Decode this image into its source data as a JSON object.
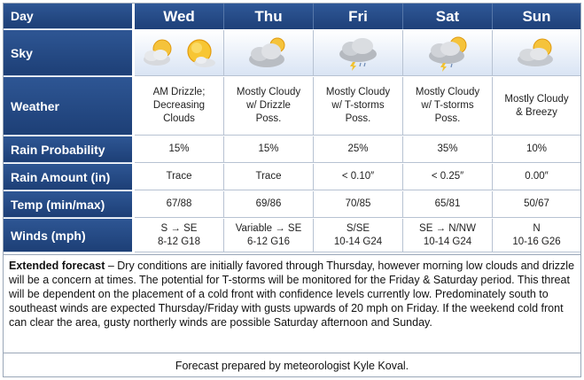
{
  "header": {
    "corner": "Day",
    "days": [
      "Wed",
      "Thu",
      "Fri",
      "Sat",
      "Sun"
    ]
  },
  "rows": {
    "sky": "Sky",
    "weather": "Weather",
    "rain_prob": "Rain Probability",
    "rain_amt": "Rain Amount (in)",
    "temp": "Temp (min/max)",
    "winds": "Winds (mph)"
  },
  "sky_icons": [
    [
      "partly-cloudy-icon",
      "mostly-sunny-icon"
    ],
    [
      "mostly-cloudy-icon"
    ],
    [
      "thunderstorm-cloud-icon"
    ],
    [
      "partly-cloudy-thunderstorm-icon"
    ],
    [
      "partly-cloudy-icon"
    ]
  ],
  "weather": [
    "AM Drizzle;\nDecreasing\nClouds",
    "Mostly Cloudy\nw/ Drizzle\nPoss.",
    "Mostly Cloudy\nw/ T-storms\nPoss.",
    "Mostly Cloudy\nw/ T-storms\nPoss.",
    "Mostly Cloudy\n& Breezy"
  ],
  "rain_prob": [
    "15%",
    "15%",
    "25%",
    "35%",
    "10%"
  ],
  "rain_amt": [
    "Trace",
    "Trace",
    "< 0.10″",
    "< 0.25″",
    "0.00″"
  ],
  "temp": [
    "67/88",
    "69/86",
    "70/85",
    "65/81",
    "50/67"
  ],
  "winds": [
    "S → SE\n8-12 G18",
    "Variable → SE\n6-12 G16",
    "S/SE\n10-14 G24",
    "SE → N/NW\n10-14 G24",
    "N\n10-16 G26"
  ],
  "extended": {
    "lead": "Extended forecast",
    "text": " – Dry conditions are initially favored through Thursday, however morning low clouds and drizzle will be a concern at times. The potential for T-storms will be monitored for the Friday & Saturday period. This threat will be dependent on the placement of a cold front with confidence levels currently low. Predominately south to southeast winds are expected Thursday/Friday with gusts upwards of 20 mph on Friday. If the weekend cold front can clear the area, gusty northerly winds are possible Saturday afternoon and Sunday."
  },
  "footer": "Forecast prepared by meteorologist Kyle Koval.",
  "colors": {
    "header_bg": "#1e4078",
    "label_bg": "#1d3f76",
    "sky_bg": "#d9e4f4",
    "border": "#b7c2d2"
  }
}
